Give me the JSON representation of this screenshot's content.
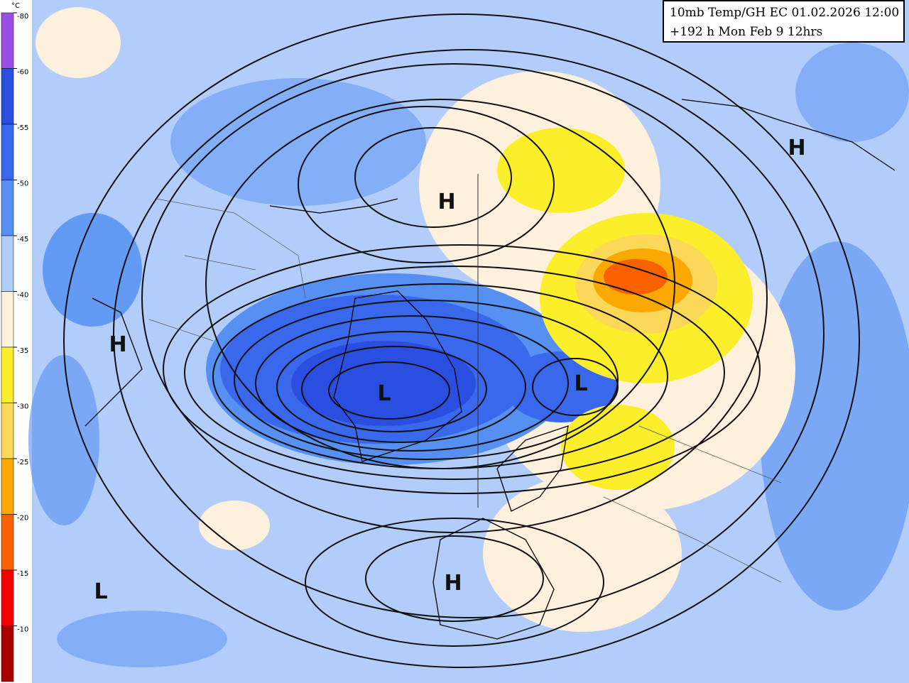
{
  "title_box": {
    "line1": "10mb Temp/GH EC 01.02.2026 12:00",
    "line2": "+192 h Mon Feb 9 12hrs"
  },
  "colorbar": {
    "unit": "°C",
    "bands": [
      {
        "label": "-80",
        "color": "#9b4fe0"
      },
      {
        "label": "-60",
        "color": "#2a4fe0"
      },
      {
        "label": "-55",
        "color": "#3a68ec"
      },
      {
        "label": "-50",
        "color": "#5590f2"
      },
      {
        "label": "-45",
        "color": "#b3cdfb"
      },
      {
        "label": "-40",
        "color": "#fdf0dc"
      },
      {
        "label": "-35",
        "color": "#fbee2a"
      },
      {
        "label": "-30",
        "color": "#fcd85a"
      },
      {
        "label": "-25",
        "color": "#fba800"
      },
      {
        "label": "-20",
        "color": "#fa6100"
      },
      {
        "label": "-15",
        "color": "#f50000"
      },
      {
        "label": "-10",
        "color": "#a80000"
      }
    ]
  },
  "pressure_centers": [
    "H",
    "H",
    "H",
    "L",
    "L",
    "H",
    "L"
  ]
}
